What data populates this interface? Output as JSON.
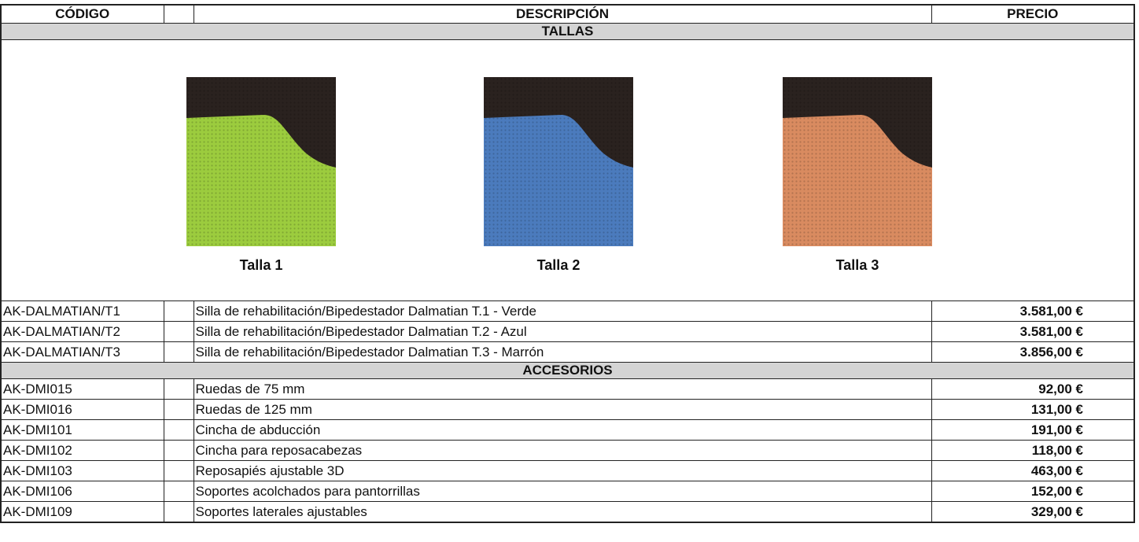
{
  "header": {
    "columns": [
      "CÓDIGO",
      "DESCRIPCIÓN",
      "PRECIO"
    ]
  },
  "sections": [
    {
      "title": "TALLAS",
      "swatches": [
        "Talla 1",
        "Talla 2",
        "Talla 3"
      ],
      "rows": [
        [
          "AK-DALMATIAN/T1",
          "Silla de rehabilitación/Bipedestador Dalmatian T.1 - Verde",
          "3.581,00 €"
        ],
        [
          "AK-DALMATIAN/T2",
          "Silla de rehabilitación/Bipedestador Dalmatian T.2 - Azul",
          "3.581,00 €"
        ],
        [
          "AK-DALMATIAN/T3",
          "Silla de rehabilitación/Bipedestador Dalmatian T.3 - Marrón",
          "3.856,00 €"
        ]
      ]
    },
    {
      "title": "ACCESORIOS",
      "rows": [
        [
          "AK-DMI015",
          "Ruedas de 75 mm",
          "92,00 €"
        ],
        [
          "AK-DMI016",
          "Ruedas de 125 mm",
          "131,00 €"
        ],
        [
          "AK-DMI101",
          "Cincha de abducción",
          "191,00 €"
        ],
        [
          "AK-DMI102",
          "Cincha para reposacabezas",
          "118,00 €"
        ],
        [
          "AK-DMI103",
          "Reposapiés ajustable 3D",
          "463,00 €"
        ],
        [
          "AK-DMI106",
          "Soportes acolchados para pantorrillas",
          "152,00 €"
        ],
        [
          "AK-DMI109",
          "Soportes laterales ajustables",
          "329,00 €"
        ]
      ]
    }
  ]
}
